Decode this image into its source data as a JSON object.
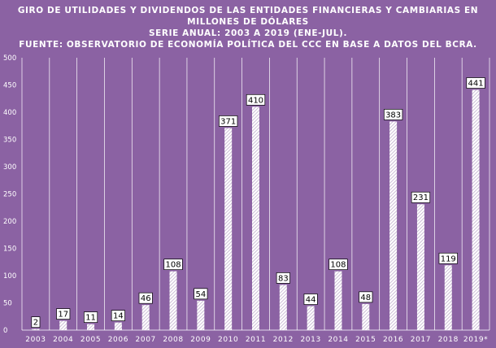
{
  "chart_data": {
    "type": "bar",
    "title_lines": [
      "GIRO DE UTILIDADES Y DIVIDENDOS DE LAS ENTIDADES FINANCIERAS Y CAMBIARIAS EN",
      "MILLONES DE DÓLARES",
      "SERIE ANUAL: 2003 A 2019 (ENE-JUL).",
      "FUENTE: OBSERVATORIO DE ECONOMÍA POLÍTICA DEL CCC EN BASE A DATOS DEL BCRA."
    ],
    "categories": [
      "2003",
      "2004",
      "2005",
      "2006",
      "2007",
      "2008",
      "2009",
      "2010",
      "2011",
      "2012",
      "2013",
      "2014",
      "2015",
      "2016",
      "2017",
      "2018",
      "2019*"
    ],
    "values": [
      2,
      17,
      11,
      14,
      46,
      108,
      54,
      371,
      410,
      83,
      44,
      108,
      48,
      383,
      231,
      119,
      441
    ],
    "ylim": [
      0,
      500
    ],
    "yticks": [
      0,
      50,
      100,
      150,
      200,
      250,
      300,
      350,
      400,
      450,
      500
    ],
    "grid": "vertical",
    "data_labels": true,
    "colors": {
      "background": "#8b62a3",
      "bar_stripe_light": "#ffffff",
      "bar_stripe_dark": "#b8a4c6",
      "grid": "#ffffff"
    }
  }
}
